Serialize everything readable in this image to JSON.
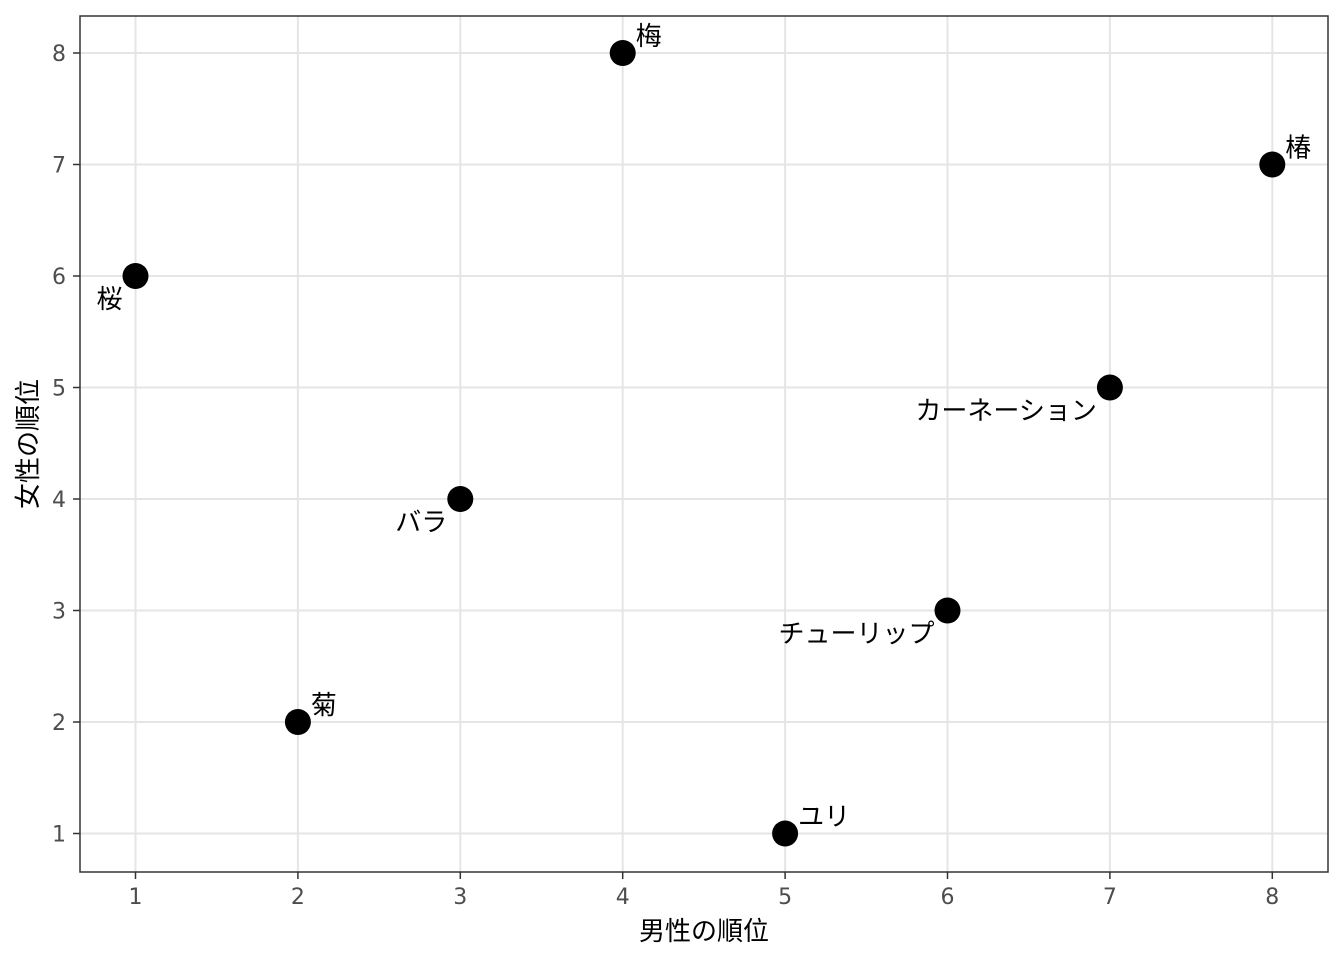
{
  "chart_data": {
    "type": "scatter",
    "xlabel": "男性の順位",
    "ylabel": "女性の順位",
    "xlim": [
      0.66,
      8.35
    ],
    "ylim": [
      0.66,
      8.35
    ],
    "x_ticks": [
      1,
      2,
      3,
      4,
      5,
      6,
      7,
      8
    ],
    "y_ticks": [
      1,
      2,
      3,
      4,
      5,
      6,
      7,
      8
    ],
    "grid": true,
    "point_color": "#000000",
    "points": [
      {
        "label": "桜",
        "x": 1,
        "y": 6,
        "label_position": "bottom-left"
      },
      {
        "label": "菊",
        "x": 2,
        "y": 2,
        "label_position": "top-right"
      },
      {
        "label": "バラ",
        "x": 3,
        "y": 4,
        "label_position": "bottom-left"
      },
      {
        "label": "梅",
        "x": 4,
        "y": 8,
        "label_position": "top-right"
      },
      {
        "label": "ユリ",
        "x": 5,
        "y": 1,
        "label_position": "top-right"
      },
      {
        "label": "チューリップ",
        "x": 6,
        "y": 3,
        "label_position": "bottom-left"
      },
      {
        "label": "カーネーション",
        "x": 7,
        "y": 5,
        "label_position": "bottom-left"
      },
      {
        "label": "椿",
        "x": 8,
        "y": 7,
        "label_position": "top-right"
      }
    ]
  }
}
